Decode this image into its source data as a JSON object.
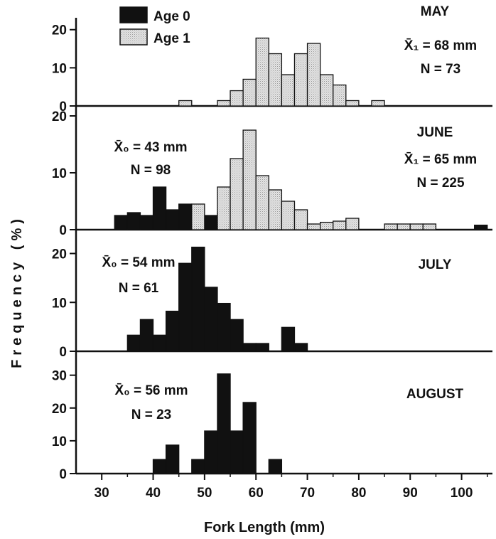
{
  "chart_data": {
    "type": "bar",
    "xlabel": "Fork Length (mm)",
    "ylabel": "Frequency (%)",
    "xlim": [
      25,
      106
    ],
    "x_ticks": [
      "30",
      "40",
      "50",
      "60",
      "70",
      "80",
      "90",
      "100"
    ],
    "bin_width_mm": 2.5,
    "legend": {
      "position": "top-left",
      "entries": [
        {
          "label": "Age 0",
          "color": "#111111"
        },
        {
          "label": "Age 1",
          "color": "#e2e2e2"
        }
      ]
    },
    "panels": [
      {
        "month": "MAY",
        "ylim": [
          0,
          22
        ],
        "y_ticks": [
          "0",
          "10",
          "20"
        ],
        "annotations": [
          {
            "mean_label": "X̄₁ = 68 mm",
            "n_label": "N = 73"
          }
        ],
        "series": [
          {
            "name": "Age 0",
            "bins": []
          },
          {
            "name": "Age 1",
            "bins": [
              [
                45,
                1.4
              ],
              [
                52.5,
                1.4
              ],
              [
                55,
                4
              ],
              [
                57.5,
                7
              ],
              [
                60,
                17.8
              ],
              [
                62.5,
                13.7
              ],
              [
                65,
                8.2
              ],
              [
                67.5,
                13.7
              ],
              [
                70,
                16.4
              ],
              [
                72.5,
                8.2
              ],
              [
                75,
                5.5
              ],
              [
                77.5,
                1.4
              ],
              [
                82.5,
                1.4
              ]
            ]
          }
        ]
      },
      {
        "month": "JUNE",
        "ylim": [
          0,
          21
        ],
        "y_ticks": [
          "0",
          "10",
          "20"
        ],
        "annotations": [
          {
            "mean_label": "X̄₀ = 43 mm",
            "n_label": "N = 98"
          },
          {
            "mean_label": "X̄₁ = 65 mm",
            "n_label": "N = 225"
          }
        ],
        "series": [
          {
            "name": "Age 0",
            "bins": [
              [
                32.5,
                2.5
              ],
              [
                35,
                3
              ],
              [
                37.5,
                2.5
              ],
              [
                40,
                7.5
              ],
              [
                42.5,
                3.5
              ],
              [
                45,
                4.5
              ],
              [
                47.5,
                3
              ],
              [
                50,
                2.5
              ],
              [
                52.5,
                3
              ],
              [
                55,
                3.5
              ]
            ]
          },
          {
            "name": "Age 1",
            "bins": [
              [
                47.5,
                4.5
              ],
              [
                52.5,
                7.5
              ],
              [
                55,
                12.5
              ],
              [
                57.5,
                17.5
              ],
              [
                60,
                9.5
              ],
              [
                62.5,
                7
              ],
              [
                65,
                5
              ],
              [
                67.5,
                3.5
              ],
              [
                70,
                1
              ],
              [
                72.5,
                1.3
              ],
              [
                75,
                1.5
              ],
              [
                77.5,
                2
              ],
              [
                85,
                1
              ],
              [
                87.5,
                1
              ],
              [
                90,
                1
              ],
              [
                92.5,
                1
              ]
            ]
          },
          {
            "name": "Age 0 (large)",
            "bins": [
              [
                102.5,
                0.8
              ]
            ]
          }
        ]
      },
      {
        "month": "JULY",
        "ylim": [
          0,
          24
        ],
        "y_ticks": [
          "0",
          "10",
          "20"
        ],
        "annotations": [
          {
            "mean_label": "X̄₀ = 54 mm",
            "n_label": "N = 61"
          }
        ],
        "series": [
          {
            "name": "Age 0",
            "bins": [
              [
                35,
                3.3
              ],
              [
                37.5,
                6.5
              ],
              [
                40,
                3.3
              ],
              [
                42.5,
                8.2
              ],
              [
                45,
                18
              ],
              [
                47.5,
                21.3
              ],
              [
                50,
                13.1
              ],
              [
                52.5,
                9.8
              ],
              [
                55,
                6.5
              ],
              [
                57.5,
                1.6
              ],
              [
                60,
                1.6
              ],
              [
                65,
                4.9
              ],
              [
                67.5,
                1.6
              ]
            ]
          },
          {
            "name": "Age 1",
            "bins": []
          }
        ]
      },
      {
        "month": "AUGUST",
        "ylim": [
          0,
          36
        ],
        "y_ticks": [
          "0",
          "10",
          "20",
          "30"
        ],
        "annotations": [
          {
            "mean_label": "X̄₀ = 56 mm",
            "n_label": "N = 23"
          }
        ],
        "series": [
          {
            "name": "Age 0",
            "bins": [
              [
                40,
                4.3
              ],
              [
                42.5,
                8.7
              ],
              [
                47.5,
                4.3
              ],
              [
                50,
                13
              ],
              [
                52.5,
                30.4
              ],
              [
                55,
                13
              ],
              [
                57.5,
                21.7
              ],
              [
                62.5,
                4.3
              ]
            ]
          },
          {
            "name": "Age 1",
            "bins": []
          }
        ]
      }
    ]
  }
}
